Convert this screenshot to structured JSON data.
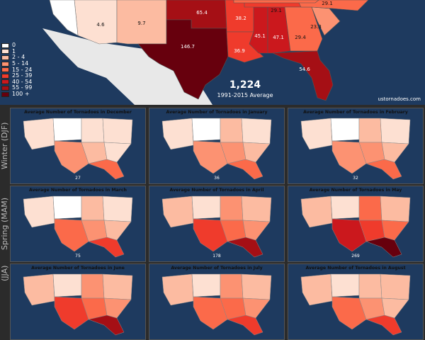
{
  "colors": {
    "ocean": "#1e3a5f",
    "land": "#e8e8e8",
    "bins": [
      "#ffffff",
      "#fde0d2",
      "#fcbba1",
      "#fc9272",
      "#fb6a4a",
      "#ef3b2c",
      "#cb181d",
      "#a50f15",
      "#67000d"
    ]
  },
  "legend": [
    "0",
    "1",
    "2 - 4",
    "5 - 14",
    "15 - 24",
    "25 - 39",
    "40 - 54",
    "55 - 99",
    "100 +"
  ],
  "main": {
    "total": "1,224",
    "period": "1991-2015 Average",
    "site": "ustornadoes.com",
    "state_values": {
      "AZ": "4.6",
      "NM": "9.7",
      "TX": "146.7",
      "OK": "65.4",
      "AR": "38.2",
      "LA": "36.9",
      "MS": "45.1",
      "AL": "47.1",
      "GA": "29.4",
      "SC": "23.3",
      "NC": "29.1",
      "VA": "29.1",
      "FL": "54.6"
    }
  },
  "seasons": {
    "winter": "Winter (DJF)",
    "spring": "Spring (MAM)",
    "summer": "(JJA)"
  },
  "panels": [
    {
      "title": "Average Number of Tornadoes in December",
      "total": "27"
    },
    {
      "title": "Average Number of Tornadoes in January",
      "total": "36"
    },
    {
      "title": "Average Number of Tornadoes in February",
      "total": "32"
    },
    {
      "title": "Average Number of Tornadoes in March",
      "total": "75"
    },
    {
      "title": "Average Number of Tornadoes in April",
      "total": "178"
    },
    {
      "title": "Average Number of Tornadoes in May",
      "total": "269"
    },
    {
      "title": "Average Number of Tornadoes in June",
      "total": ""
    },
    {
      "title": "Average Number of Tornadoes in July",
      "total": ""
    },
    {
      "title": "Average Number of Tornadoes in August",
      "total": ""
    }
  ]
}
